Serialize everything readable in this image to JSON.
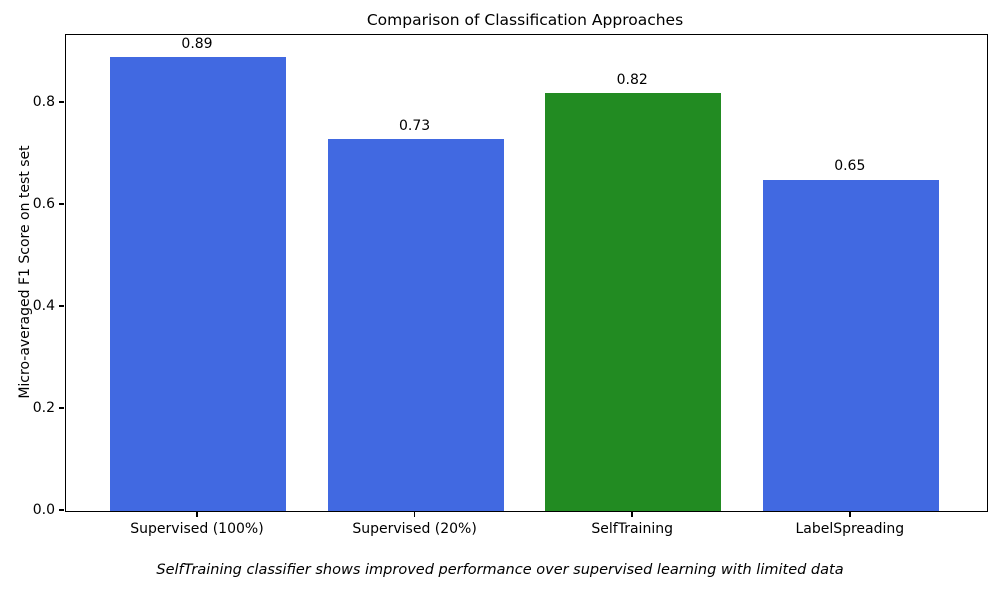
{
  "chart_data": {
    "type": "bar",
    "title": "Comparison of Classification Approaches",
    "ylabel": "Micro-averaged F1 Score on test set",
    "xlabel": "",
    "caption": "SelfTraining classifier shows improved performance over supervised learning with limited data",
    "categories": [
      "Supervised (100%)",
      "Supervised (20%)",
      "SelfTraining",
      "LabelSpreading"
    ],
    "values": [
      0.89,
      0.73,
      0.82,
      0.65
    ],
    "value_labels": [
      "0.89",
      "0.73",
      "0.82",
      "0.65"
    ],
    "bar_colors": [
      "#4169e1",
      "#4169e1",
      "#228b22",
      "#4169e1"
    ],
    "ytick_values": [
      0.0,
      0.2,
      0.4,
      0.6,
      0.8
    ],
    "ytick_labels": [
      "0.0",
      "0.2",
      "0.4",
      "0.6",
      "0.8"
    ],
    "ylim": [
      0,
      0.9333
    ],
    "grid": false,
    "legend": "none"
  },
  "colors": {
    "bar_blue": "#4169e1",
    "bar_green": "#228b22",
    "spine": "#000000",
    "background": "#ffffff",
    "text": "#000000"
  }
}
